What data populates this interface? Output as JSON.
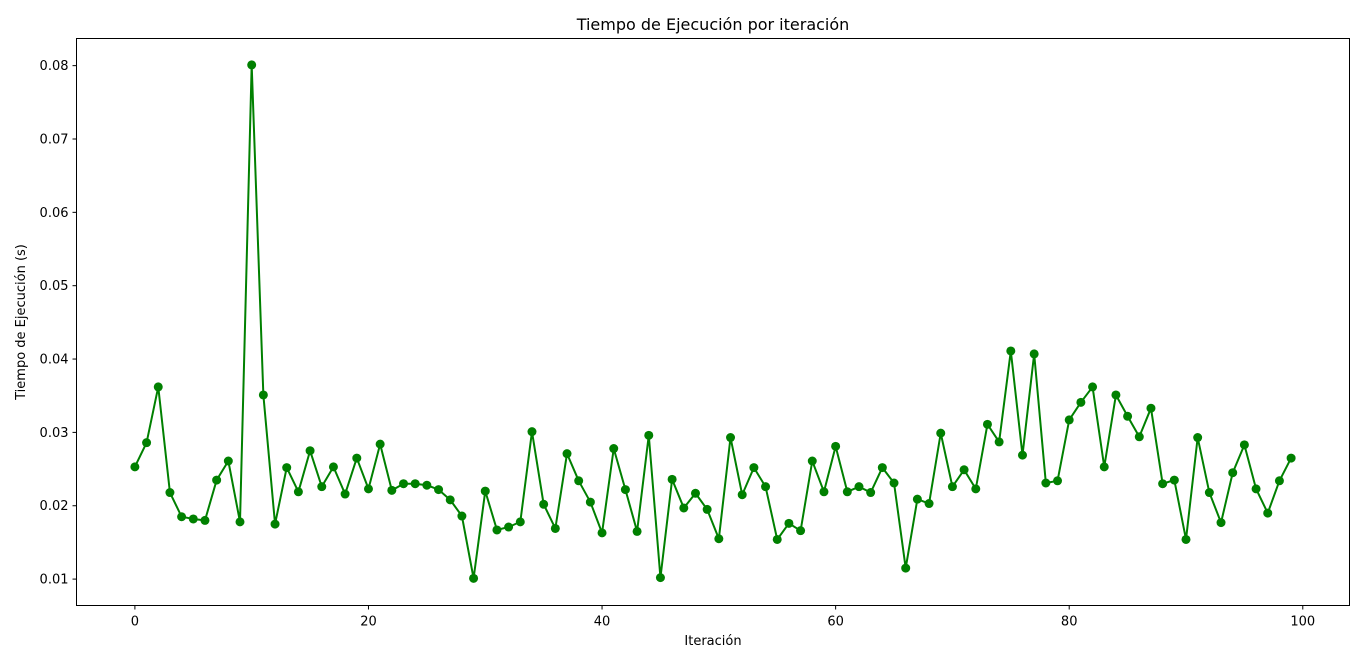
{
  "chart_data": {
    "type": "line",
    "title": "Tiempo de Ejecución por iteración",
    "xlabel": "Iteración",
    "ylabel": "Tiempo de Ejecución (s)",
    "xlim": [
      -5,
      104
    ],
    "ylim": [
      0.0064,
      0.0837
    ],
    "xticks": [
      0,
      20,
      40,
      60,
      80,
      100
    ],
    "yticks": [
      0.01,
      0.02,
      0.03,
      0.04,
      0.05,
      0.06,
      0.07,
      0.08
    ],
    "xtick_labels": [
      "0",
      "20",
      "40",
      "60",
      "80",
      "100"
    ],
    "ytick_labels": [
      "0.01",
      "0.02",
      "0.03",
      "0.04",
      "0.05",
      "0.06",
      "0.07",
      "0.08"
    ],
    "color": "#008000",
    "marker": "circle",
    "grid": false,
    "legend": "none",
    "x": [
      0,
      1,
      2,
      3,
      4,
      5,
      6,
      7,
      8,
      9,
      10,
      11,
      12,
      13,
      14,
      15,
      16,
      17,
      18,
      19,
      20,
      21,
      22,
      23,
      24,
      25,
      26,
      27,
      28,
      29,
      30,
      31,
      32,
      33,
      34,
      35,
      36,
      37,
      38,
      39,
      40,
      41,
      42,
      43,
      44,
      45,
      46,
      47,
      48,
      49,
      50,
      51,
      52,
      53,
      54,
      55,
      56,
      57,
      58,
      59,
      60,
      61,
      62,
      63,
      64,
      65,
      66,
      67,
      68,
      69,
      70,
      71,
      72,
      73,
      74,
      75,
      76,
      77,
      78,
      79,
      80,
      81,
      82,
      83,
      84,
      85,
      86,
      87,
      88,
      89,
      90,
      91,
      92,
      93,
      94,
      95,
      96,
      97,
      98,
      99
    ],
    "y": [
      0.0253,
      0.0286,
      0.0362,
      0.0218,
      0.0185,
      0.0182,
      0.018,
      0.0235,
      0.0261,
      0.0178,
      0.0801,
      0.0351,
      0.0175,
      0.0252,
      0.0219,
      0.0275,
      0.0226,
      0.0253,
      0.0216,
      0.0265,
      0.0223,
      0.0284,
      0.0221,
      0.023,
      0.023,
      0.0228,
      0.0222,
      0.0208,
      0.0186,
      0.0101,
      0.022,
      0.0167,
      0.0171,
      0.0178,
      0.0301,
      0.0202,
      0.0169,
      0.0271,
      0.0234,
      0.0205,
      0.0163,
      0.0278,
      0.0222,
      0.0165,
      0.0296,
      0.0102,
      0.0236,
      0.0197,
      0.0217,
      0.0195,
      0.0155,
      0.0293,
      0.0215,
      0.0252,
      0.0226,
      0.0154,
      0.0176,
      0.0166,
      0.0261,
      0.0219,
      0.0281,
      0.0219,
      0.0226,
      0.0218,
      0.0252,
      0.0231,
      0.0115,
      0.0209,
      0.0203,
      0.0299,
      0.0226,
      0.0249,
      0.0223,
      0.0311,
      0.0287,
      0.0411,
      0.0269,
      0.0407,
      0.0231,
      0.0234,
      0.0317,
      0.0341,
      0.0362,
      0.0253,
      0.0351,
      0.0322,
      0.0294,
      0.0333,
      0.023,
      0.0235,
      0.0154,
      0.0293,
      0.0218,
      0.0177,
      0.0245,
      0.0283,
      0.0223,
      0.019,
      0.0234,
      0.0265
    ]
  }
}
